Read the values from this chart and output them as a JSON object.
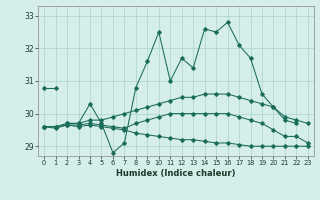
{
  "title": "",
  "xlabel": "Humidex (Indice chaleur)",
  "ylabel": "",
  "background_color": "#d6eeea",
  "grid_color": "#b0d8d2",
  "line_color": "#1a6b5a",
  "xlim": [
    -0.5,
    23.5
  ],
  "ylim": [
    28.7,
    33.3
  ],
  "yticks": [
    29,
    30,
    31,
    32,
    33
  ],
  "xticks": [
    0,
    1,
    2,
    3,
    4,
    5,
    6,
    7,
    8,
    9,
    10,
    11,
    12,
    13,
    14,
    15,
    16,
    17,
    18,
    19,
    20,
    21,
    22,
    23
  ],
  "series": [
    {
      "x": [
        0,
        1
      ],
      "y": [
        30.8,
        30.8
      ]
    },
    {
      "x": [
        2,
        3,
        4,
        5,
        6,
        7,
        8,
        9,
        10,
        11,
        12,
        13,
        14,
        15,
        16,
        17,
        18,
        19,
        20,
        21,
        22
      ],
      "y": [
        29.7,
        29.7,
        30.3,
        29.7,
        28.8,
        29.1,
        30.8,
        31.6,
        32.5,
        31.0,
        31.7,
        31.4,
        32.6,
        32.5,
        32.8,
        32.1,
        31.7,
        30.6,
        30.2,
        29.8,
        29.7
      ]
    },
    {
      "x": [
        0,
        1,
        2,
        3,
        4,
        5,
        6,
        7,
        8,
        9,
        10,
        11,
        12,
        13,
        14,
        15,
        16,
        17,
        18,
        19,
        20,
        21,
        22,
        23
      ],
      "y": [
        29.6,
        29.6,
        29.7,
        29.7,
        29.8,
        29.8,
        29.9,
        30.0,
        30.1,
        30.2,
        30.3,
        30.4,
        30.5,
        30.5,
        30.6,
        30.6,
        30.6,
        30.5,
        30.4,
        30.3,
        30.2,
        29.9,
        29.8,
        29.7
      ]
    },
    {
      "x": [
        0,
        1,
        2,
        3,
        4,
        5,
        6,
        7,
        8,
        9,
        10,
        11,
        12,
        13,
        14,
        15,
        16,
        17,
        18,
        19,
        20,
        21,
        22,
        23
      ],
      "y": [
        29.6,
        29.6,
        29.65,
        29.65,
        29.7,
        29.65,
        29.6,
        29.55,
        29.7,
        29.8,
        29.9,
        30.0,
        30.0,
        30.0,
        30.0,
        30.0,
        30.0,
        29.9,
        29.8,
        29.7,
        29.5,
        29.3,
        29.3,
        29.1
      ]
    },
    {
      "x": [
        0,
        1,
        2,
        3,
        4,
        5,
        6,
        7,
        8,
        9,
        10,
        11,
        12,
        13,
        14,
        15,
        16,
        17,
        18,
        19,
        20,
        21,
        22,
        23
      ],
      "y": [
        29.6,
        29.55,
        29.65,
        29.6,
        29.65,
        29.6,
        29.55,
        29.5,
        29.4,
        29.35,
        29.3,
        29.25,
        29.2,
        29.2,
        29.15,
        29.1,
        29.1,
        29.05,
        29.0,
        29.0,
        29.0,
        29.0,
        29.0,
        29.0
      ]
    }
  ]
}
